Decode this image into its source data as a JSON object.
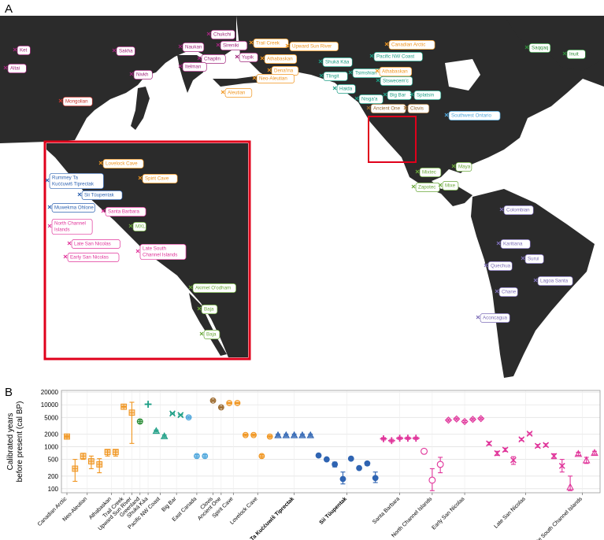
{
  "panels": {
    "a_letter": "A",
    "b_letter": "B"
  },
  "colors": {
    "land": "#2b2b2b",
    "ocean": "#ffffff",
    "inset_border": "#e0001b",
    "arctic_orange": "#f0951f",
    "nwcoast_teal": "#1e9f86",
    "siberia_purple": "#a1267c",
    "mongol_red": "#c8362f",
    "east_blue": "#4ea6dc",
    "california_pink": "#e0349a",
    "mesoamerica_green": "#6aa83a",
    "south_lavender": "#7d6eb8",
    "tiprectak_blue": "#2f64b2",
    "greenland_green": "#2f8f3a",
    "brown": "#9c6a2e"
  },
  "map_labels": [
    {
      "text": "Ket",
      "color": "#a1267c"
    },
    {
      "text": "Altai",
      "color": "#a1267c"
    },
    {
      "text": "Sakha",
      "color": "#a1267c"
    },
    {
      "text": "Nivkh",
      "color": "#a1267c"
    },
    {
      "text": "Mongolian",
      "color": "#c8362f"
    },
    {
      "text": "Chukchi",
      "color": "#a1267c"
    },
    {
      "text": "Naukan",
      "color": "#a1267c"
    },
    {
      "text": "Sireniki",
      "color": "#a1267c"
    },
    {
      "text": "Chaplin",
      "color": "#a1267c"
    },
    {
      "text": "Yupik",
      "color": "#a1267c"
    },
    {
      "text": "Itelman",
      "color": "#a1267c"
    },
    {
      "text": "Trail Creek",
      "color": "#f0951f"
    },
    {
      "text": "Upward Sun River",
      "color": "#f0951f"
    },
    {
      "text": "Athabaskan",
      "color": "#f0951f"
    },
    {
      "text": "Dena'ina",
      "color": "#f0951f"
    },
    {
      "text": "Neo-Aleutian",
      "color": "#f0951f"
    },
    {
      "text": "Aleutian",
      "color": "#f0951f"
    },
    {
      "text": "Canadian Arctic",
      "color": "#f0951f"
    },
    {
      "text": "Saqqaq",
      "color": "#2f8f3a"
    },
    {
      "text": "Inuit",
      "color": "#2f8f3a"
    },
    {
      "text": "Shuká Káa",
      "color": "#1e9f86"
    },
    {
      "text": "Pacific NW Coast",
      "color": "#1e9f86"
    },
    {
      "text": "Tlingit",
      "color": "#1e9f86"
    },
    {
      "text": "Tsimshian",
      "color": "#1e9f86"
    },
    {
      "text": "Athabaskan",
      "color": "#f0951f"
    },
    {
      "text": "Haida",
      "color": "#1e9f86"
    },
    {
      "text": "Stswecem'c",
      "color": "#1e9f86"
    },
    {
      "text": "Nisga'a",
      "color": "#1e9f86"
    },
    {
      "text": "Big Bar",
      "color": "#1e9f86"
    },
    {
      "text": "Splatsin",
      "color": "#1e9f86"
    },
    {
      "text": "Ancient One",
      "color": "#9c6a2e"
    },
    {
      "text": "Clovis",
      "color": "#9c6a2e"
    },
    {
      "text": "Southwest Ontario",
      "color": "#4ea6dc"
    },
    {
      "text": "Mixtec",
      "color": "#6aa83a"
    },
    {
      "text": "Maya",
      "color": "#6aa83a"
    },
    {
      "text": "Zapotec",
      "color": "#6aa83a"
    },
    {
      "text": "Mixe",
      "color": "#6aa83a"
    },
    {
      "text": "Colombian",
      "color": "#7d6eb8"
    },
    {
      "text": "Karitiana",
      "color": "#7d6eb8"
    },
    {
      "text": "Surui",
      "color": "#7d6eb8"
    },
    {
      "text": "Quechua",
      "color": "#7d6eb8"
    },
    {
      "text": "Lagoa Santa",
      "color": "#7d6eb8"
    },
    {
      "text": "Chane",
      "color": "#7d6eb8"
    },
    {
      "text": "Aconcagua",
      "color": "#7d6eb8"
    }
  ],
  "inset_labels": [
    {
      "text": "Lovelock Cave",
      "color": "#f0951f"
    },
    {
      "text": "Spirit Cave",
      "color": "#f0951f"
    },
    {
      "text": "Rummey Ta Kuċċuwiš Tiprectak",
      "color": "#2f64b2"
    },
    {
      "text": "Sii Tüupentak",
      "color": "#2f64b2"
    },
    {
      "text": "Muwekma Ohlone",
      "color": "#2f64b2"
    },
    {
      "text": "Santa Barbara",
      "color": "#e0349a"
    },
    {
      "text": "North Channel Islands",
      "color": "#e0349a"
    },
    {
      "text": "MXL",
      "color": "#6aa83a"
    },
    {
      "text": "Late San Nicolas",
      "color": "#e0349a"
    },
    {
      "text": "Early San Nicolas",
      "color": "#e0349a"
    },
    {
      "text": "Late South Channel Islands",
      "color": "#e0349a"
    },
    {
      "text": "Akimel O'odham",
      "color": "#6aa83a"
    },
    {
      "text": "Baja",
      "color": "#6aa83a"
    },
    {
      "text": "Baja",
      "color": "#6aa83a"
    }
  ],
  "chart_data": {
    "type": "scatter",
    "ylabel": "Calibrated years\nbefore present (cal BP)",
    "yscale": "log",
    "ylim": [
      80,
      22000
    ],
    "yticks": [
      100,
      200,
      500,
      1000,
      2000,
      5000,
      10000,
      20000
    ],
    "ytick_labels": [
      "100",
      "200",
      "500",
      "1000",
      "2000",
      "5000",
      "10000",
      "20000"
    ],
    "xtick_labels": [
      {
        "text": "Canadian Arctic",
        "bold": false
      },
      {
        "text": "Neo-Aleutian",
        "bold": false
      },
      {
        "text": "Athabaskan",
        "bold": false
      },
      {
        "text": "Trail Creek",
        "bold": false
      },
      {
        "text": "Upward Sun River",
        "bold": false
      },
      {
        "text": "Greenland",
        "bold": false
      },
      {
        "text": "Shuká Káa",
        "bold": false
      },
      {
        "text": "Pacific NW Coast",
        "bold": false
      },
      {
        "text": "Big Bar",
        "bold": false
      },
      {
        "text": "East Canada",
        "bold": false
      },
      {
        "text": "Clovis",
        "bold": false
      },
      {
        "text": "Ancient One",
        "bold": false
      },
      {
        "text": "Spirit Cave",
        "bold": false
      },
      {
        "text": "Lovelock Cave",
        "bold": false
      },
      {
        "text": "Rummey Ta Kuċċuwiš Tiprectak",
        "bold": true
      },
      {
        "text": "Sii Tüupentak",
        "bold": true
      },
      {
        "text": "Santa Barbara",
        "bold": false
      },
      {
        "text": "North Channel Islands",
        "bold": false
      },
      {
        "text": "Early San Nicolas",
        "bold": false
      },
      {
        "text": "Late San Nicolas",
        "bold": false
      },
      {
        "text": "Late South Channel Islands",
        "bold": false
      }
    ],
    "series": [
      {
        "name": "Canadian Arctic",
        "color": "#f0951f",
        "marker": "square-plus",
        "points": [
          {
            "y": 1750,
            "lo": 1650,
            "hi": 1850
          }
        ]
      },
      {
        "name": "Neo-Aleutian",
        "color": "#f0951f",
        "marker": "square-plus",
        "points": [
          {
            "y": 300,
            "lo": 150,
            "hi": 500
          },
          {
            "y": 600,
            "lo": 500,
            "hi": 700
          },
          {
            "y": 450,
            "lo": 300,
            "hi": 600
          },
          {
            "y": 380,
            "lo": 240,
            "hi": 520
          }
        ]
      },
      {
        "name": "Athabaskan",
        "color": "#f0951f",
        "marker": "square-plus",
        "points": [
          {
            "y": 750,
            "lo": 600,
            "hi": 850
          },
          {
            "y": 750,
            "lo": 600,
            "hi": 850
          }
        ]
      },
      {
        "name": "Trail Creek",
        "color": "#f0951f",
        "marker": "square-plus",
        "points": [
          {
            "y": 9000,
            "lo": 8800,
            "hi": 9200
          }
        ]
      },
      {
        "name": "Upward Sun River",
        "color": "#f0951f",
        "marker": "square-plus",
        "points": [
          {
            "y": 6500,
            "lo": 1200,
            "hi": 11500
          }
        ]
      },
      {
        "name": "Greenland",
        "color": "#2f8f3a",
        "marker": "circle-plus",
        "points": [
          {
            "y": 4000,
            "lo": 3700,
            "hi": 4300
          }
        ]
      },
      {
        "name": "Shuká Káa",
        "color": "#1e9f86",
        "marker": "plus",
        "points": [
          {
            "y": 10300,
            "lo": 10200,
            "hi": 10400
          }
        ]
      },
      {
        "name": "Pacific NW Coast",
        "color": "#1e9f86",
        "marker": "triangle",
        "points": [
          {
            "y": 2400,
            "lo": 2300,
            "hi": 2500
          },
          {
            "y": 1800,
            "lo": 1700,
            "hi": 1900
          }
        ]
      },
      {
        "name": "Big Bar",
        "color": "#1e9f86",
        "marker": "x",
        "points": [
          {
            "y": 6200,
            "lo": 6000,
            "hi": 6400
          },
          {
            "y": 5700,
            "lo": 5500,
            "hi": 5900
          }
        ]
      },
      {
        "name": "East Canada",
        "color": "#4ea6dc",
        "marker": "circle-bar",
        "points": [
          {
            "y": 5000,
            "lo": 4700,
            "hi": 5300
          },
          {
            "y": 600,
            "lo": 550,
            "hi": 650
          },
          {
            "y": 600,
            "lo": 550,
            "hi": 650
          }
        ]
      },
      {
        "name": "Clovis",
        "color": "#9c6a2e",
        "marker": "circle-x",
        "points": [
          {
            "y": 12600,
            "lo": 12200,
            "hi": 13000
          }
        ]
      },
      {
        "name": "Ancient One",
        "color": "#9c6a2e",
        "marker": "circle-x",
        "points": [
          {
            "y": 8700,
            "lo": 8500,
            "hi": 8900
          }
        ]
      },
      {
        "name": "Spirit Cave",
        "color": "#f0951f",
        "marker": "circle-bar",
        "points": [
          {
            "y": 11000,
            "lo": 10700,
            "hi": 11300
          },
          {
            "y": 11000,
            "lo": 10700,
            "hi": 11300
          }
        ]
      },
      {
        "name": "Lovelock Cave",
        "color": "#f0951f",
        "marker": "circle-bar",
        "points": [
          {
            "y": 1900,
            "lo": 1800,
            "hi": 2000
          },
          {
            "y": 1900,
            "lo": 1800,
            "hi": 2000
          },
          {
            "y": 600,
            "lo": 550,
            "hi": 650
          },
          {
            "y": 1750,
            "lo": 1650,
            "hi": 1850
          }
        ]
      },
      {
        "name": "Rummey Ta Kuċċuwiš Tiprectak",
        "color": "#2f64b2",
        "marker": "triangle",
        "points": [
          {
            "y": 1900,
            "lo": 1800,
            "hi": 2000
          },
          {
            "y": 1900,
            "lo": 1800,
            "hi": 2000
          },
          {
            "y": 1900,
            "lo": 1800,
            "hi": 2000
          },
          {
            "y": 1900,
            "lo": 1800,
            "hi": 2000
          },
          {
            "y": 1900,
            "lo": 1800,
            "hi": 2000
          }
        ]
      },
      {
        "name": "Sii Tüupentak",
        "color": "#2f64b2",
        "marker": "circle",
        "points": [
          {
            "y": 620,
            "lo": 570,
            "hi": 670
          },
          {
            "y": 500,
            "lo": 460,
            "hi": 540
          },
          {
            "y": 380,
            "lo": 330,
            "hi": 430
          },
          {
            "y": 170,
            "lo": 130,
            "hi": 250
          },
          {
            "y": 520,
            "lo": 480,
            "hi": 560
          },
          {
            "y": 310,
            "lo": 290,
            "hi": 330
          },
          {
            "y": 400,
            "lo": 360,
            "hi": 440
          },
          {
            "y": 180,
            "lo": 140,
            "hi": 250
          }
        ]
      },
      {
        "name": "Santa Barbara",
        "color": "#e0349a",
        "marker": "plus",
        "points": [
          {
            "y": 1550,
            "lo": 1450,
            "hi": 1650
          },
          {
            "y": 1400,
            "lo": 1300,
            "hi": 1500
          },
          {
            "y": 1600,
            "lo": 1500,
            "hi": 1700
          },
          {
            "y": 1600,
            "lo": 1500,
            "hi": 1700
          },
          {
            "y": 1600,
            "lo": 1500,
            "hi": 1700
          }
        ]
      },
      {
        "name": "North Channel Islands",
        "color": "#e0349a",
        "marker": "open-circle",
        "points": [
          {
            "y": 780,
            "lo": 700,
            "hi": 860
          },
          {
            "y": 160,
            "lo": 90,
            "hi": 300
          },
          {
            "y": 380,
            "lo": 240,
            "hi": 560
          }
        ]
      },
      {
        "name": "Early San Nicolas",
        "color": "#e0349a",
        "marker": "diamond",
        "points": [
          {
            "y": 4300,
            "lo": 4100,
            "hi": 4500
          },
          {
            "y": 4600,
            "lo": 4400,
            "hi": 4800
          },
          {
            "y": 4000,
            "lo": 3800,
            "hi": 4200
          },
          {
            "y": 4500,
            "lo": 4300,
            "hi": 4700
          },
          {
            "y": 4700,
            "lo": 4500,
            "hi": 4900
          }
        ]
      },
      {
        "name": "Late San Nicolas",
        "color": "#e0349a",
        "marker": "x-bar",
        "points": [
          {
            "y": 1200,
            "lo": 1100,
            "hi": 1300
          },
          {
            "y": 700,
            "lo": 620,
            "hi": 780
          },
          {
            "y": 850,
            "lo": 770,
            "hi": 930
          },
          {
            "y": 480,
            "lo": 380,
            "hi": 580
          },
          {
            "y": 1500,
            "lo": 1400,
            "hi": 1600
          },
          {
            "y": 2050,
            "lo": 1950,
            "hi": 2150
          },
          {
            "y": 1050,
            "lo": 970,
            "hi": 1130
          },
          {
            "y": 1100,
            "lo": 1020,
            "hi": 1180
          },
          {
            "y": 600,
            "lo": 520,
            "hi": 680
          },
          {
            "y": 350,
            "lo": 250,
            "hi": 500
          }
        ]
      },
      {
        "name": "Late South Channel Islands",
        "color": "#e0349a",
        "marker": "open-triangle",
        "points": [
          {
            "y": 110,
            "lo": 90,
            "hi": 200
          },
          {
            "y": 680,
            "lo": 620,
            "hi": 740
          },
          {
            "y": 480,
            "lo": 400,
            "hi": 560
          },
          {
            "y": 720,
            "lo": 660,
            "hi": 780
          }
        ]
      }
    ]
  }
}
